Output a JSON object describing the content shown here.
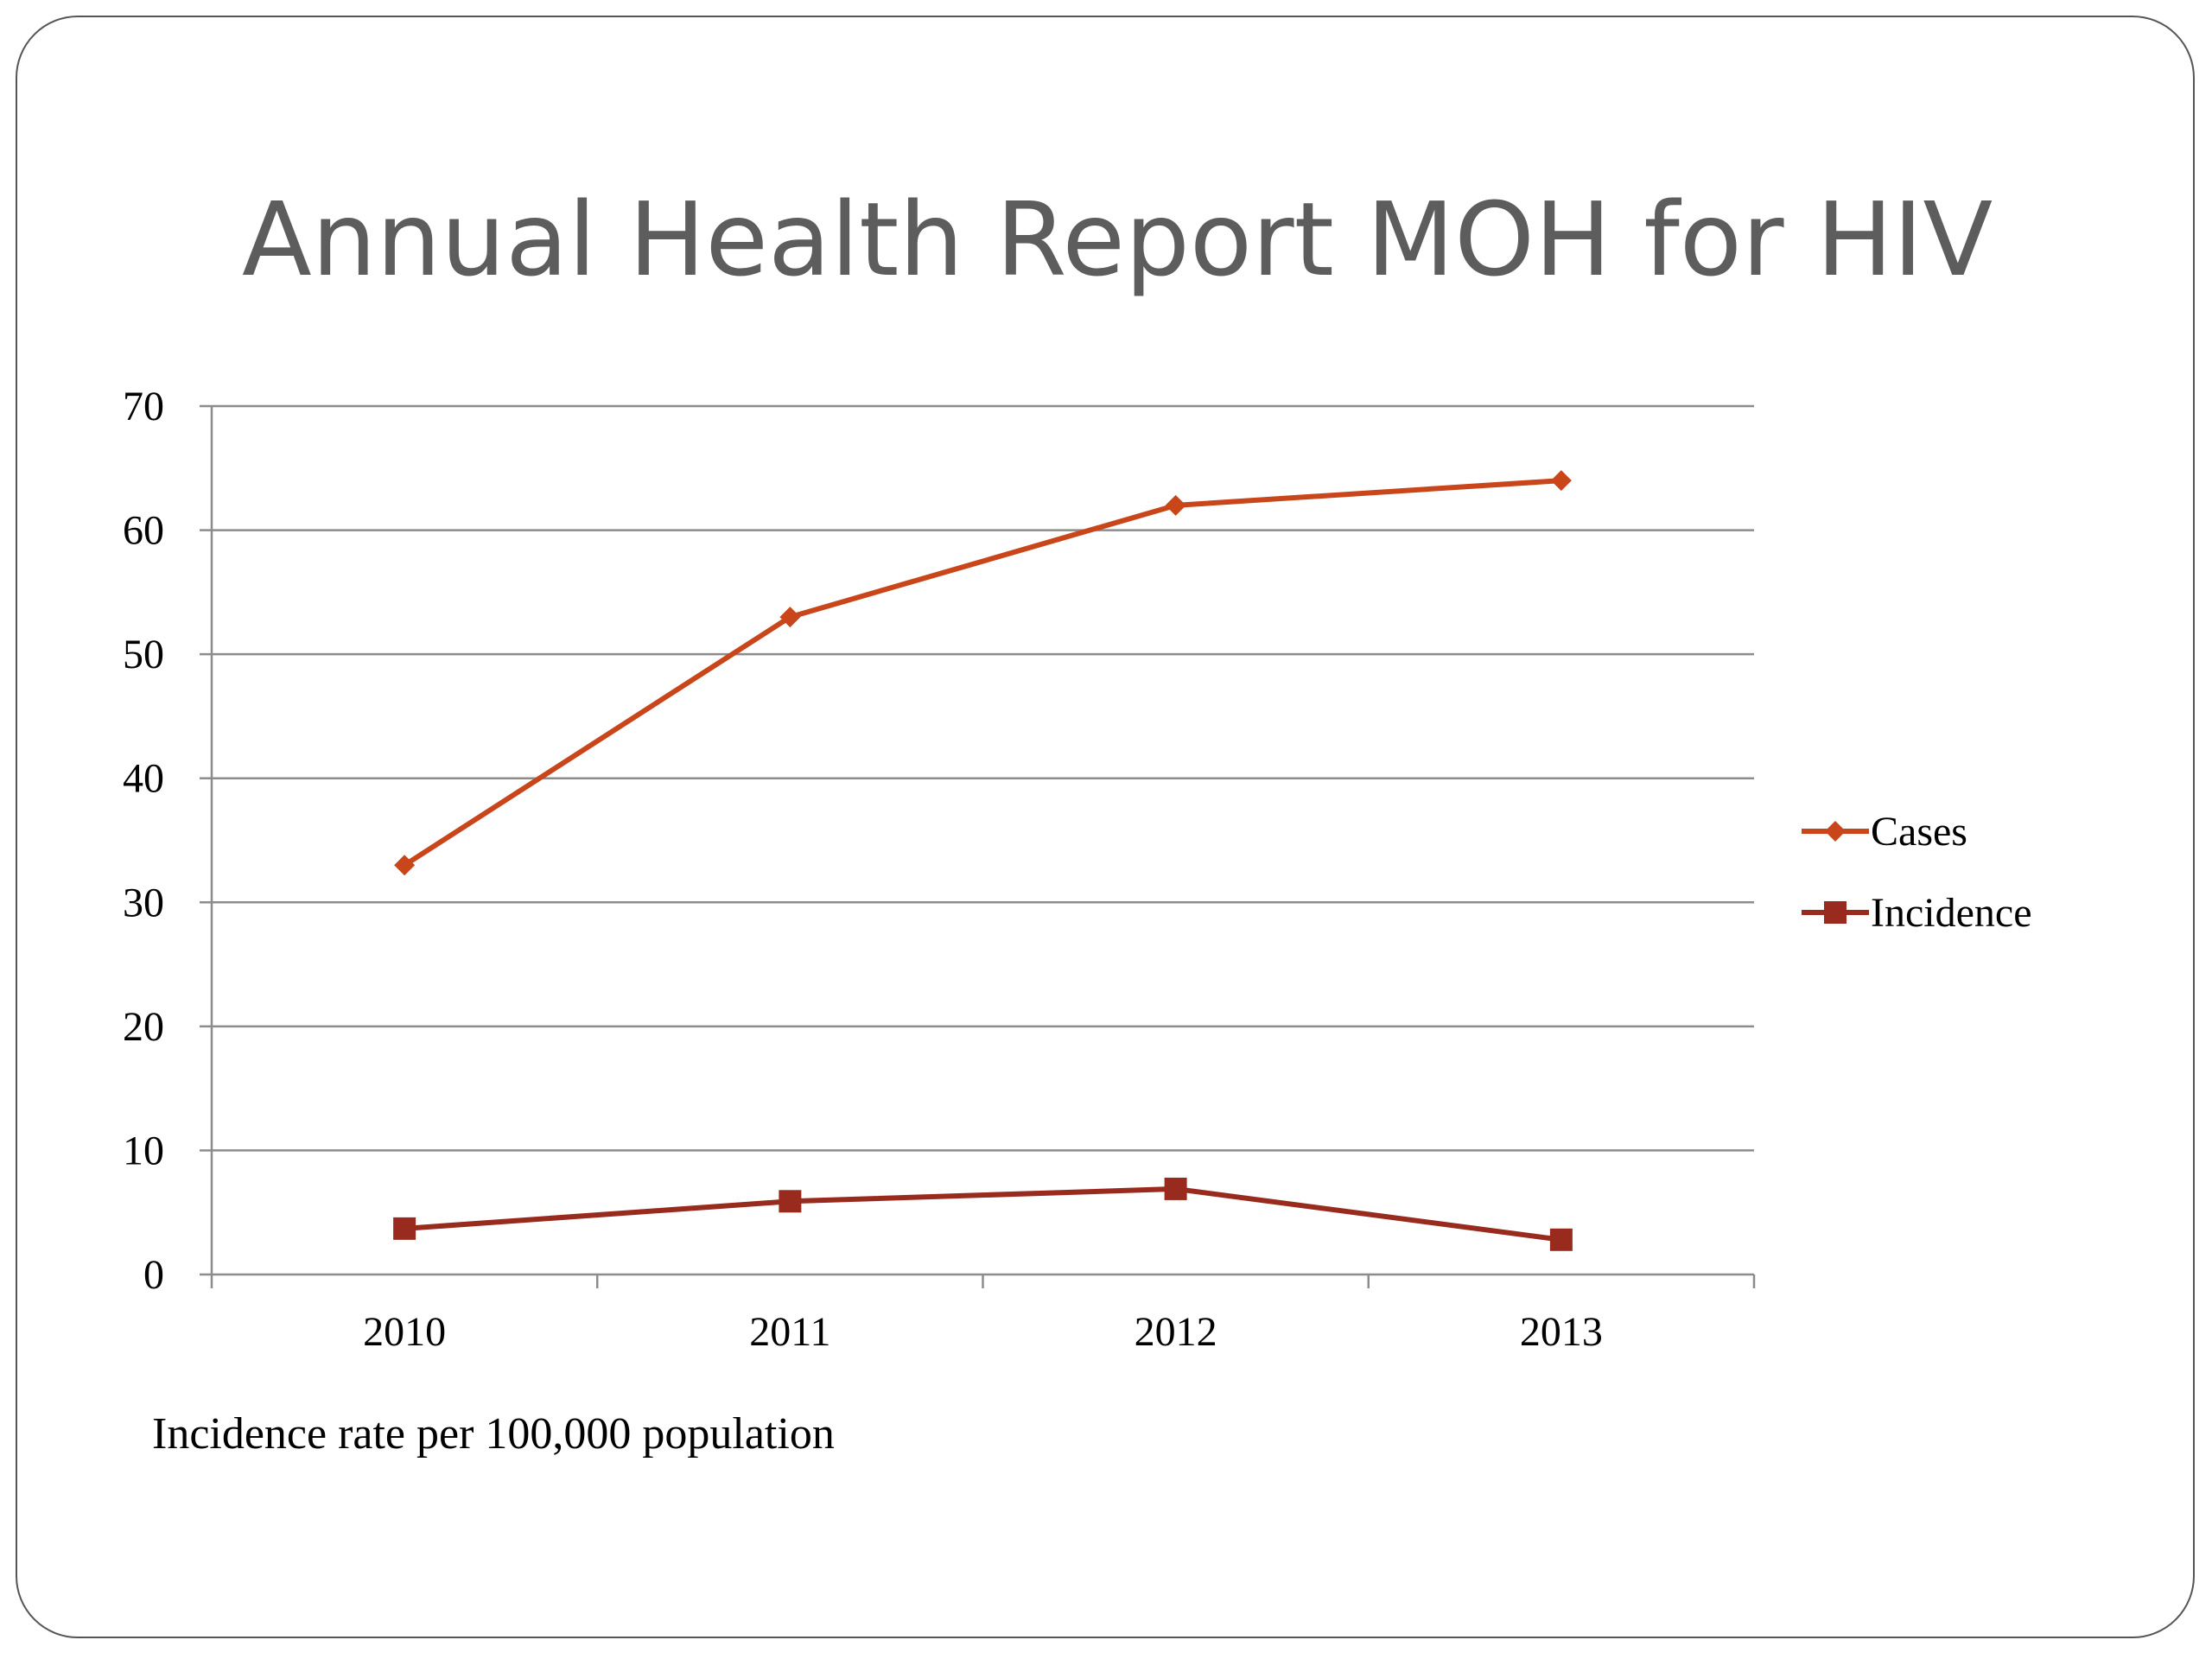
{
  "slide": {
    "title": "Annual Health Report MOH for HIV",
    "footnote": "Incidence rate per 100,000 population"
  },
  "chart_data": {
    "type": "line",
    "categories": [
      "2010",
      "2011",
      "2012",
      "2013"
    ],
    "series": [
      {
        "name": "Cases",
        "values": [
          33,
          53,
          62,
          64
        ],
        "color": "#c9461b",
        "marker": "diamond"
      },
      {
        "name": "Incidence",
        "values": [
          3.7,
          5.9,
          6.9,
          2.8
        ],
        "color": "#992b1e",
        "marker": "square"
      }
    ],
    "ylim": [
      0,
      70
    ],
    "yticks": [
      0,
      10,
      20,
      30,
      40,
      50,
      60,
      70
    ],
    "grid": true,
    "legend_position": "right",
    "gridline_color": "#8c8c8c",
    "axis_color": "#8c8c8c"
  }
}
